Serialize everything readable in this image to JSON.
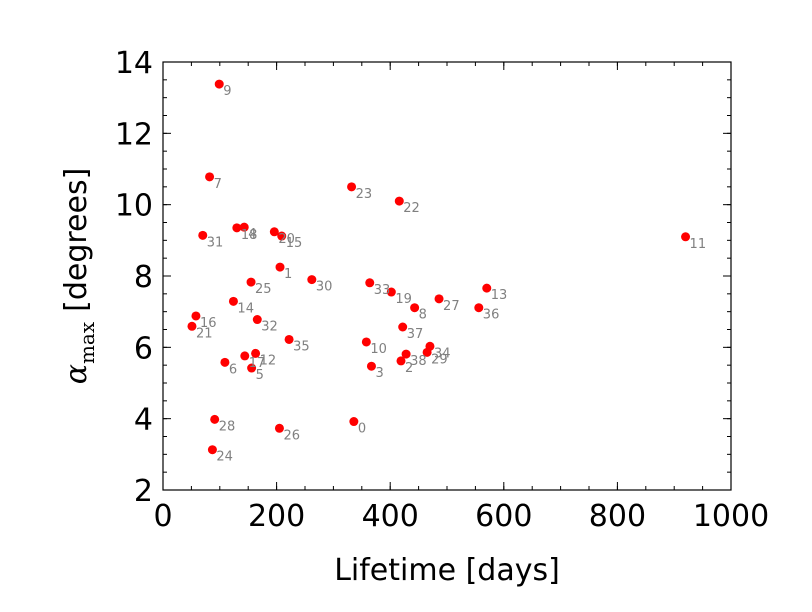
{
  "chart_data": {
    "type": "scatter",
    "title": "",
    "xlabel": "Lifetime [days]",
    "ylabel_main": "α",
    "ylabel_sub": "max",
    "ylabel_unit": "[degrees]",
    "xlim": [
      0,
      1000
    ],
    "ylim": [
      2,
      14
    ],
    "x_ticks": [
      0,
      200,
      400,
      600,
      800,
      1000
    ],
    "x_tick_labels": [
      "0",
      "200",
      "400",
      "600",
      "800",
      "1000"
    ],
    "y_ticks": [
      2,
      4,
      6,
      8,
      10,
      12,
      14
    ],
    "y_tick_labels": [
      "2",
      "4",
      "6",
      "8",
      "10",
      "12",
      "14"
    ],
    "x_minor_step": 50,
    "y_minor_step": 0.5,
    "grid": false,
    "legend": "none",
    "marker_color": "#ff0000",
    "label_color": "#808080",
    "points": [
      {
        "label": "0",
        "x": 336,
        "y": 3.92
      },
      {
        "label": "1",
        "x": 206,
        "y": 8.25
      },
      {
        "label": "2",
        "x": 419,
        "y": 5.62
      },
      {
        "label": "3",
        "x": 367,
        "y": 5.47
      },
      {
        "label": "4",
        "x": 143,
        "y": 9.37
      },
      {
        "label": "5",
        "x": 156,
        "y": 5.42
      },
      {
        "label": "6",
        "x": 109,
        "y": 5.58
      },
      {
        "label": "7",
        "x": 82,
        "y": 10.78
      },
      {
        "label": "8",
        "x": 443,
        "y": 7.11
      },
      {
        "label": "9",
        "x": 99,
        "y": 13.38
      },
      {
        "label": "10",
        "x": 358,
        "y": 6.15
      },
      {
        "label": "11",
        "x": 920,
        "y": 9.1
      },
      {
        "label": "12",
        "x": 163,
        "y": 5.83
      },
      {
        "label": "13",
        "x": 570,
        "y": 7.66
      },
      {
        "label": "14",
        "x": 124,
        "y": 7.29
      },
      {
        "label": "15",
        "x": 209,
        "y": 9.12
      },
      {
        "label": "16",
        "x": 58,
        "y": 6.88
      },
      {
        "label": "17",
        "x": 144,
        "y": 5.76
      },
      {
        "label": "18",
        "x": 130,
        "y": 9.35
      },
      {
        "label": "19",
        "x": 402,
        "y": 7.55
      },
      {
        "label": "20",
        "x": 196,
        "y": 9.24
      },
      {
        "label": "21",
        "x": 51,
        "y": 6.59
      },
      {
        "label": "22",
        "x": 416,
        "y": 10.1
      },
      {
        "label": "23",
        "x": 332,
        "y": 10.5
      },
      {
        "label": "24",
        "x": 87,
        "y": 3.13
      },
      {
        "label": "25",
        "x": 155,
        "y": 7.83
      },
      {
        "label": "26",
        "x": 205,
        "y": 3.73
      },
      {
        "label": "27",
        "x": 486,
        "y": 7.36
      },
      {
        "label": "28",
        "x": 91,
        "y": 3.98
      },
      {
        "label": "29",
        "x": 465,
        "y": 5.86
      },
      {
        "label": "30",
        "x": 262,
        "y": 7.9
      },
      {
        "label": "31",
        "x": 70,
        "y": 9.14
      },
      {
        "label": "32",
        "x": 166,
        "y": 6.78
      },
      {
        "label": "33",
        "x": 364,
        "y": 7.81
      },
      {
        "label": "34",
        "x": 470,
        "y": 6.03
      },
      {
        "label": "35",
        "x": 222,
        "y": 6.22
      },
      {
        "label": "36",
        "x": 556,
        "y": 7.11
      },
      {
        "label": "37",
        "x": 422,
        "y": 6.57
      },
      {
        "label": "38",
        "x": 428,
        "y": 5.81
      }
    ]
  }
}
